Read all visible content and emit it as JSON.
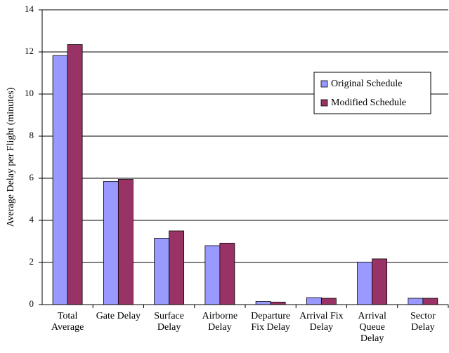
{
  "chart_data": {
    "type": "bar",
    "y_label": "Average Delay per Flight (minutes)",
    "categories": [
      "Total Average",
      "Gate Delay",
      "Surface Delay",
      "Airborne Delay",
      "Departure Fix Delay",
      "Arrival Fix Delay",
      "Arrival Queue Delay",
      "Sector Delay"
    ],
    "series": [
      {
        "name": "Original Schedule",
        "color": "#9999ff",
        "values": [
          11.83,
          5.85,
          3.15,
          2.8,
          0.15,
          0.33,
          2.02,
          0.3
        ]
      },
      {
        "name": "Modified Schedule",
        "color": "#993366",
        "values": [
          12.35,
          5.95,
          3.5,
          2.92,
          0.12,
          0.3,
          2.17,
          0.3
        ]
      }
    ],
    "ylim": [
      0,
      14
    ],
    "yticks": [
      0,
      2,
      4,
      6,
      8,
      10,
      12,
      14
    ],
    "grid": true,
    "legend_position": "right"
  }
}
